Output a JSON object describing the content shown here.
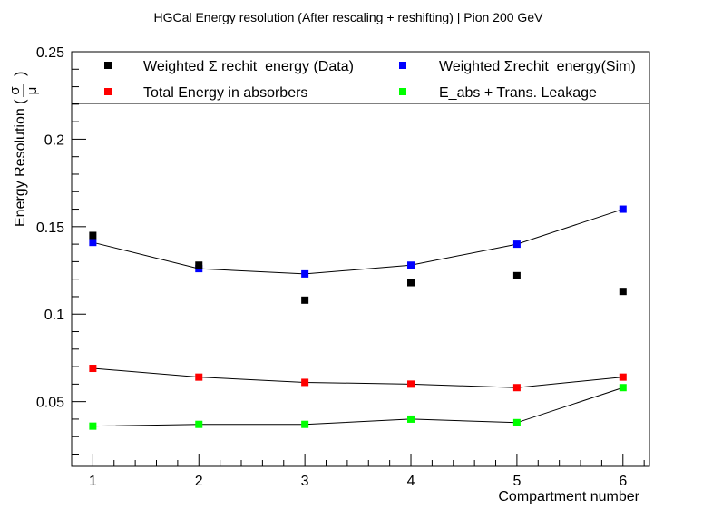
{
  "chart_data": {
    "type": "scatter",
    "title": "HGCal Energy resolution (After rescaling + reshifting) | Pion 200 GeV",
    "xlabel": "Compartment number",
    "ylabel_main": "Energy Resolution (",
    "ylabel_num": "σ",
    "ylabel_den": "μ",
    "ylabel_close": ")",
    "xlim": [
      0.8,
      6.25
    ],
    "ylim": [
      0.013,
      0.25
    ],
    "x_ticks": [
      1,
      2,
      3,
      4,
      5,
      6
    ],
    "y_ticks": [
      0.05,
      0.1,
      0.15,
      0.2,
      0.25
    ],
    "y_tick_labels": [
      "0.05",
      "0.1",
      "0.15",
      "0.2",
      "0.25"
    ],
    "grid": false,
    "legend_position": "top",
    "series": [
      {
        "name": "Weighted Σ rechit_energy (Data)",
        "color": "#000000",
        "line": false,
        "x": [
          1,
          2,
          3,
          4,
          5,
          6
        ],
        "values": [
          0.145,
          0.128,
          0.108,
          0.118,
          0.122,
          0.113
        ]
      },
      {
        "name": "Weighted Σrechit_energy(Sim)",
        "color": "#0000ff",
        "line": true,
        "x": [
          1,
          2,
          3,
          4,
          5,
          6
        ],
        "values": [
          0.141,
          0.126,
          0.123,
          0.128,
          0.14,
          0.16
        ]
      },
      {
        "name": "Total Energy in absorbers",
        "color": "#ff0000",
        "line": true,
        "x": [
          1,
          2,
          3,
          4,
          5,
          6
        ],
        "values": [
          0.069,
          0.064,
          0.061,
          0.06,
          0.058,
          0.064
        ]
      },
      {
        "name": "E_abs + Trans. Leakage",
        "color": "#00ff00",
        "line": true,
        "x": [
          1,
          2,
          3,
          4,
          5,
          6
        ],
        "values": [
          0.036,
          0.037,
          0.037,
          0.04,
          0.038,
          0.058
        ]
      }
    ]
  }
}
